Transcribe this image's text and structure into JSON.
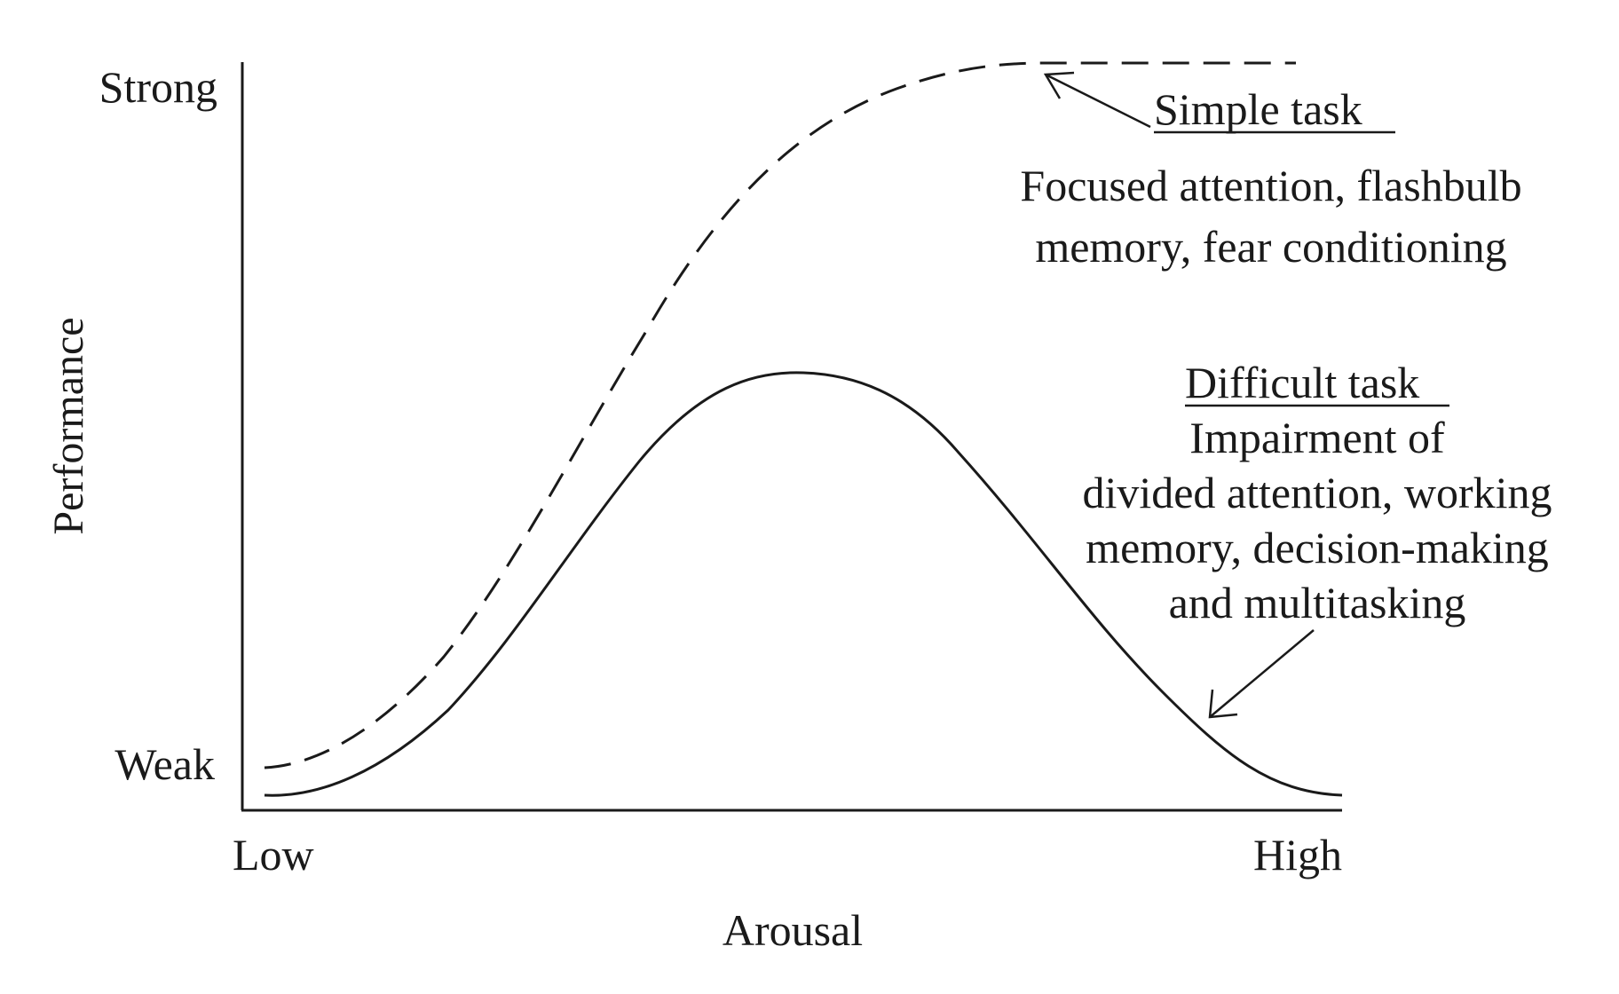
{
  "axes": {
    "x_label": "Arousal",
    "y_label": "Performance",
    "x_low": "Low",
    "x_high": "High",
    "y_strong": "Strong",
    "y_weak": "Weak"
  },
  "simple_task": {
    "title": "Simple task",
    "line1": "Focused attention, flashbulb",
    "line2": "memory, fear conditioning"
  },
  "difficult_task": {
    "title": "Difficult task",
    "line1": "Impairment of",
    "line2": "divided attention, working",
    "line3": "memory, decision-making",
    "line4": "and multitasking"
  },
  "colors": {
    "ink": "#1a1a1a",
    "background": "#ffffff"
  }
}
